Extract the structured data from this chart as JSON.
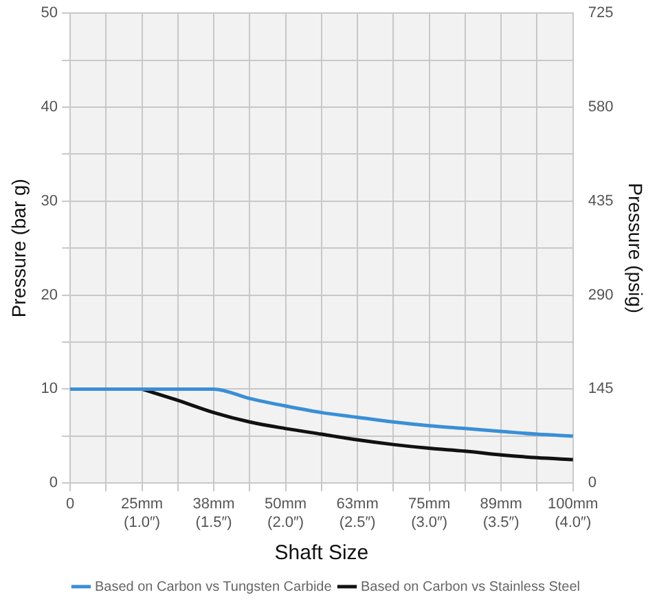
{
  "chart_data": {
    "type": "line",
    "xlabel": "Shaft Size",
    "ylabel": "Pressure (bar g)",
    "y2label": "Pressure (psig)",
    "categories": [
      "0",
      null,
      "25mm\n(1.0″)",
      null,
      "38mm\n(1.5″)",
      null,
      "50mm\n(2.0″)",
      null,
      "63mm\n(2.5″)",
      null,
      "75mm\n(3.0″)",
      null,
      "89mm\n(3.5″)",
      null,
      "100mm\n(4.0″)"
    ],
    "series": [
      {
        "name": "Based on Carbon vs Tungsten Carbide",
        "color": "#3a8fd6",
        "values": [
          10,
          10,
          10,
          10,
          10,
          9.0,
          8.2,
          7.5,
          7.0,
          6.5,
          6.1,
          5.8,
          5.5,
          5.2,
          5.0
        ]
      },
      {
        "name": "Based on Carbon vs Stainless Steel",
        "color": "#111111",
        "values": [
          null,
          null,
          10,
          8.8,
          7.5,
          6.5,
          5.8,
          5.2,
          4.6,
          4.1,
          3.7,
          3.4,
          3.0,
          2.7,
          2.5
        ]
      }
    ],
    "ylim": [
      0,
      50
    ],
    "yticks": [
      0,
      {
        "value": 5,
        "label": null
      },
      10,
      {
        "value": 15,
        "label": null
      },
      20,
      {
        "value": 25,
        "label": null
      },
      30,
      {
        "value": 35,
        "label": null
      },
      40,
      {
        "value": 45,
        "label": null
      },
      50
    ],
    "y2lim": [
      0,
      725
    ],
    "y2ticks": [
      0,
      145,
      290,
      435,
      580,
      725
    ],
    "grid": true,
    "legend": "bottom",
    "marker": "none",
    "line_style": "solid"
  }
}
